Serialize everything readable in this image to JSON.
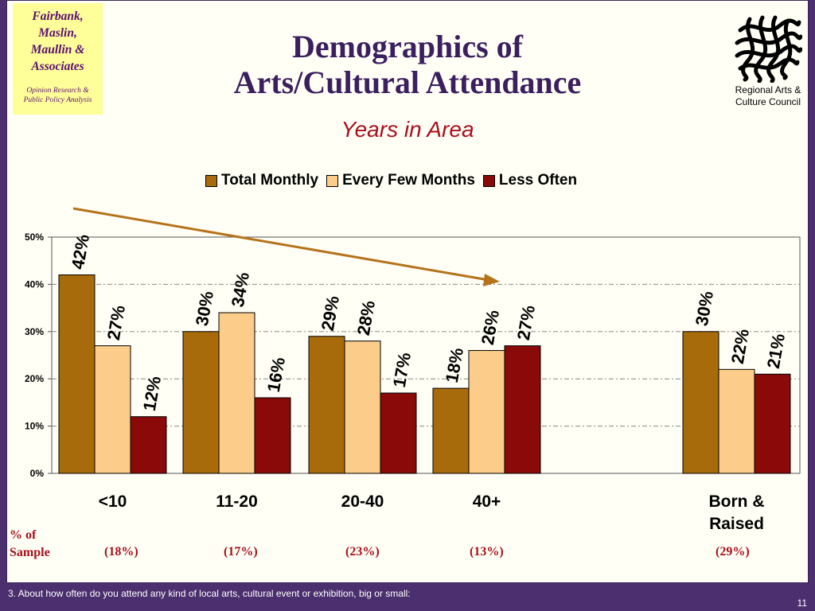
{
  "logo": {
    "name": "Fairbank,\nMaslin,\nMaullin &\nAssociates",
    "tagline": "Opinion Research &\nPublic Policy Analysis"
  },
  "header": {
    "title": "Demographics of\nArts/Cultural Attendance",
    "subtitle": "Years in Area"
  },
  "client_logo": {
    "icon": "woven-lattice-logo-icon",
    "text": "Regional Arts &\nCulture Council"
  },
  "colors": {
    "series_total_monthly": "#a86b0c",
    "series_every_few_months": "#fbcc8a",
    "series_less_often": "#8a0a0a",
    "arrow": "#b5731a",
    "title": "#3b1f5e",
    "accent_red": "#a8101c",
    "background_border": "#4b2f6e"
  },
  "chart_data": {
    "type": "bar",
    "title": "Years in Area",
    "categories": [
      "<10",
      "11-20",
      "20-40",
      "40+",
      "Born &\nRaised"
    ],
    "series": [
      {
        "name": "Total Monthly",
        "values": [
          42,
          30,
          29,
          18,
          30
        ],
        "labels": [
          "42%",
          "30%",
          "29%",
          "18%",
          "30%"
        ]
      },
      {
        "name": "Every Few Months",
        "values": [
          27,
          34,
          28,
          26,
          22
        ],
        "labels": [
          "27%",
          "34%",
          "28%",
          "26%",
          "22%"
        ]
      },
      {
        "name": "Less Often",
        "values": [
          12,
          16,
          17,
          27,
          21
        ],
        "labels": [
          "12%",
          "16%",
          "17%",
          "27%",
          "21%"
        ]
      }
    ],
    "ylim": [
      0,
      50
    ],
    "yticks": [
      "0%",
      "10%",
      "20%",
      "30%",
      "40%",
      "50%"
    ],
    "ytick_values": [
      0,
      10,
      20,
      30,
      40,
      50
    ],
    "grid": true,
    "legend_position": "top",
    "annotation": "arrow from <10 to 40+ group"
  },
  "sample": {
    "label": "% of\nSample",
    "values": [
      "(18%)",
      "(17%)",
      "(23%)",
      "(13%)",
      "(29%)"
    ]
  },
  "footnote": "3. About how often do you attend any kind of local arts, cultural event or exhibition, big or small:",
  "page_number": "11"
}
